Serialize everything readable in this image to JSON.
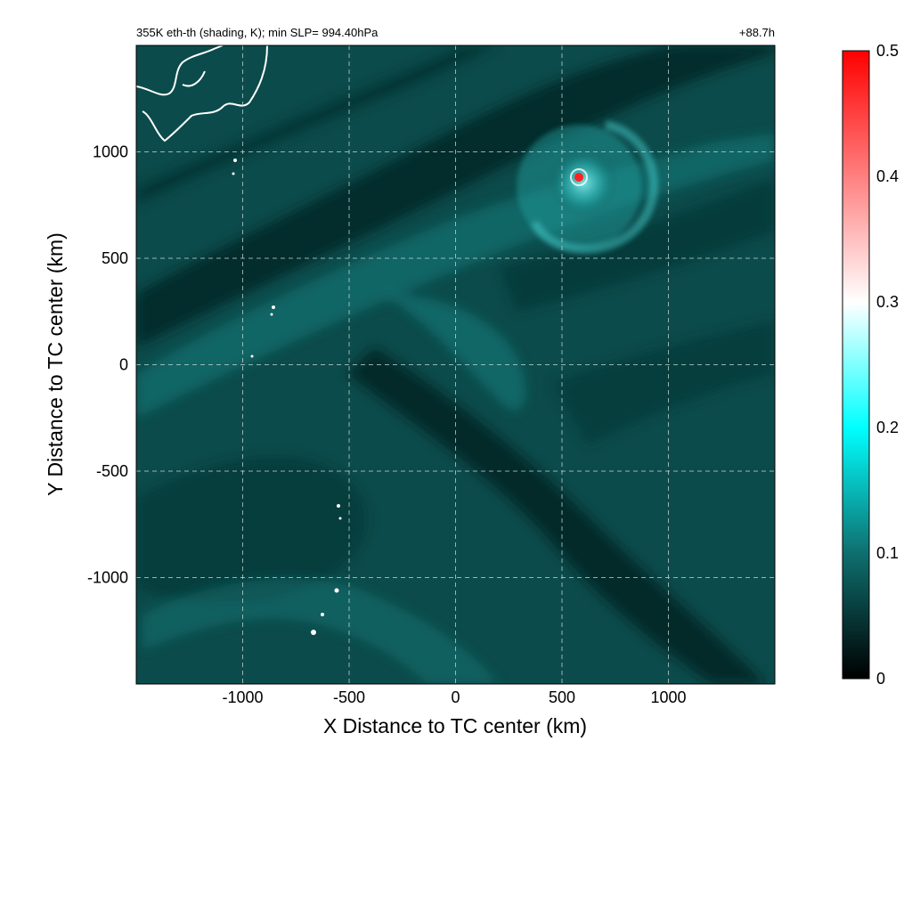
{
  "chart_data": {
    "type": "heatmap",
    "title_left": "355K eth-th (shading, K); min SLP= 994.40hPa",
    "title_right": "+88.7h",
    "xlabel": "X Distance to TC center (km)",
    "ylabel": "Y Distance to TC center (km)",
    "xlim": [
      -1500,
      1500
    ],
    "ylim": [
      -1500,
      1500
    ],
    "xticks": [
      -1000,
      -500,
      0,
      500,
      1000
    ],
    "yticks": [
      -1000,
      -500,
      0,
      500,
      1000
    ],
    "xtick_labels": [
      "-1000",
      "-500",
      "0",
      "500",
      "1000"
    ],
    "ytick_labels": [
      "-1000",
      "-500",
      "0",
      "500",
      "1000"
    ],
    "grid": true,
    "colorbar": {
      "min": 0,
      "max": 0.5,
      "ticks": [
        0,
        0.1,
        0.2,
        0.3,
        0.4,
        0.5
      ],
      "tick_labels": [
        "0",
        "0.1",
        "0.2",
        "0.3",
        "0.4",
        "0.5"
      ],
      "colors": [
        "#000000",
        "#0f6f6f",
        "#00ffff",
        "#ffffff",
        "#ff0000"
      ],
      "stops": [
        0,
        0.2,
        0.4,
        0.6,
        1.0
      ]
    },
    "background_color": "#0c4b4b",
    "features": {
      "cyclone_center_km": [
        580,
        880
      ]
    }
  }
}
